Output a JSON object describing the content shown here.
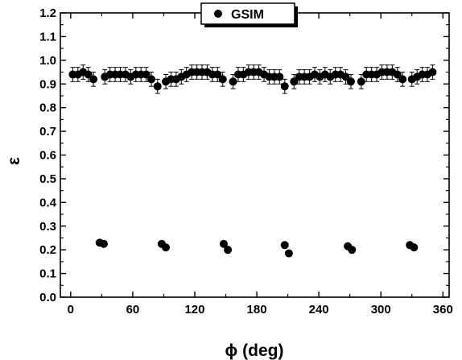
{
  "chart_data": {
    "type": "scatter",
    "xlabel": "ϕ (deg)",
    "ylabel": "ε",
    "xlim": [
      -10,
      366
    ],
    "ylim": [
      0.0,
      1.2
    ],
    "xticks": [
      "0",
      "60",
      "120",
      "180",
      "240",
      "300",
      "360"
    ],
    "xtick_values": [
      0,
      60,
      120,
      180,
      240,
      300,
      360
    ],
    "yticks": [
      "0.0",
      "0.1",
      "0.2",
      "0.3",
      "0.4",
      "0.5",
      "0.6",
      "0.7",
      "0.8",
      "0.9",
      "1.0",
      "1.1",
      "1.2"
    ],
    "ytick_values": [
      0.0,
      0.1,
      0.2,
      0.3,
      0.4,
      0.5,
      0.6,
      0.7,
      0.8,
      0.9,
      1.0,
      1.1,
      1.2
    ],
    "grid": false,
    "legend": {
      "position": "top-center",
      "entries": [
        "GSIM"
      ]
    },
    "series": [
      {
        "name": "GSIM",
        "marker": "filled-circle",
        "color": "#000000",
        "upper_band": {
          "error": 0.03,
          "points": [
            [
              2,
              0.94
            ],
            [
              7,
              0.94
            ],
            [
              12,
              0.95
            ],
            [
              17,
              0.94
            ],
            [
              22,
              0.92
            ],
            [
              33,
              0.93
            ],
            [
              38,
              0.94
            ],
            [
              43,
              0.94
            ],
            [
              48,
              0.94
            ],
            [
              53,
              0.94
            ],
            [
              58,
              0.93
            ],
            [
              63,
              0.94
            ],
            [
              68,
              0.94
            ],
            [
              73,
              0.94
            ],
            [
              78,
              0.92
            ],
            [
              84,
              0.89
            ],
            [
              92,
              0.91
            ],
            [
              97,
              0.92
            ],
            [
              102,
              0.92
            ],
            [
              107,
              0.93
            ],
            [
              112,
              0.94
            ],
            [
              117,
              0.95
            ],
            [
              122,
              0.95
            ],
            [
              127,
              0.95
            ],
            [
              132,
              0.95
            ],
            [
              137,
              0.94
            ],
            [
              142,
              0.94
            ],
            [
              147,
              0.92
            ],
            [
              157,
              0.91
            ],
            [
              162,
              0.94
            ],
            [
              167,
              0.94
            ],
            [
              172,
              0.95
            ],
            [
              177,
              0.95
            ],
            [
              182,
              0.95
            ],
            [
              187,
              0.94
            ],
            [
              192,
              0.93
            ],
            [
              197,
              0.93
            ],
            [
              202,
              0.93
            ],
            [
              207,
              0.89
            ],
            [
              216,
              0.91
            ],
            [
              221,
              0.93
            ],
            [
              226,
              0.93
            ],
            [
              231,
              0.93
            ],
            [
              236,
              0.94
            ],
            [
              241,
              0.93
            ],
            [
              246,
              0.94
            ],
            [
              251,
              0.93
            ],
            [
              256,
              0.94
            ],
            [
              261,
              0.94
            ],
            [
              266,
              0.93
            ],
            [
              271,
              0.91
            ],
            [
              281,
              0.91
            ],
            [
              286,
              0.94
            ],
            [
              291,
              0.94
            ],
            [
              296,
              0.94
            ],
            [
              301,
              0.95
            ],
            [
              306,
              0.95
            ],
            [
              311,
              0.95
            ],
            [
              316,
              0.94
            ],
            [
              321,
              0.92
            ],
            [
              330,
              0.92
            ],
            [
              335,
              0.93
            ],
            [
              340,
              0.94
            ],
            [
              345,
              0.94
            ],
            [
              350,
              0.95
            ]
          ]
        },
        "lower_points": [
          [
            28,
            0.23
          ],
          [
            32,
            0.225
          ],
          [
            88,
            0.225
          ],
          [
            92,
            0.21
          ],
          [
            148,
            0.225
          ],
          [
            152,
            0.2
          ],
          [
            207,
            0.22
          ],
          [
            211,
            0.185
          ],
          [
            268,
            0.215
          ],
          [
            272,
            0.2
          ],
          [
            328,
            0.22
          ],
          [
            332,
            0.21
          ]
        ]
      }
    ]
  }
}
